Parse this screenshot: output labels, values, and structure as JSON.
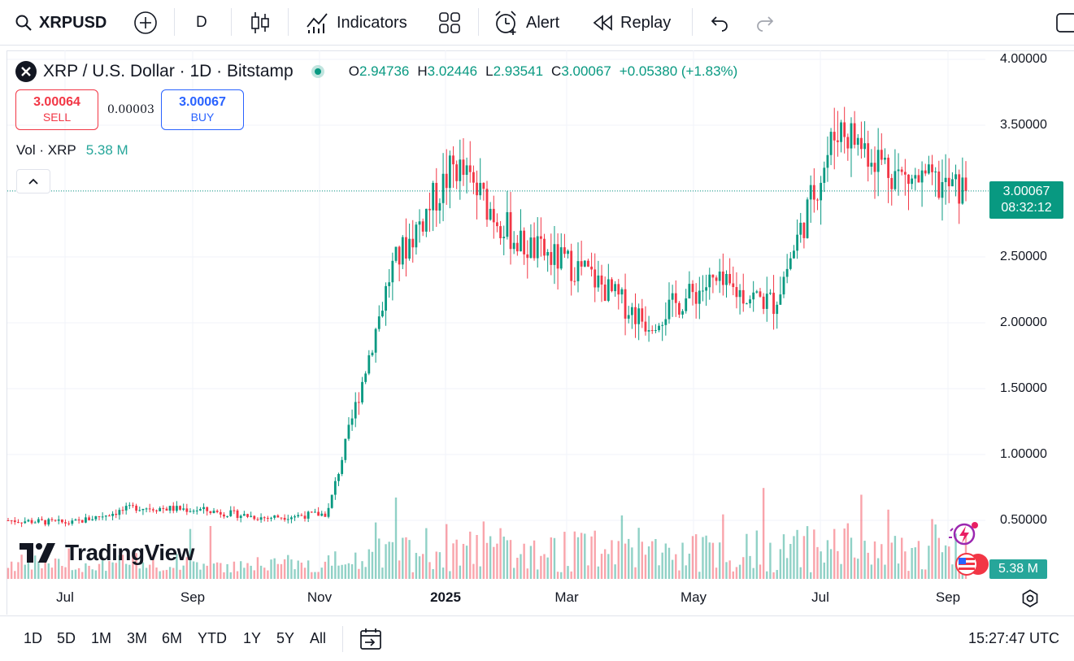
{
  "toolbar": {
    "symbol": "XRPUSD",
    "interval": "D",
    "indicators_label": "Indicators",
    "alert_label": "Alert",
    "replay_label": "Replay"
  },
  "legend": {
    "title": "XRP / U.S. Dollar · 1D · Bitstamp",
    "open_label": "O",
    "open": "2.94736",
    "high_label": "H",
    "high": "3.02446",
    "low_label": "L",
    "low": "2.93541",
    "close_label": "C",
    "close": "3.00067",
    "change": "+0.05380 (+1.83%)"
  },
  "trade": {
    "sell_price": "3.00064",
    "sell_label": "SELL",
    "spread": "0.00003",
    "buy_price": "3.00067",
    "buy_label": "BUY"
  },
  "volume_legend": {
    "label": "Vol · XRP",
    "value": "5.38 M"
  },
  "price_scale": {
    "labels": [
      "4.00000",
      "3.50000",
      "3.00000",
      "2.50000",
      "2.00000",
      "1.50000",
      "1.00000",
      "0.50000"
    ],
    "last_price": "3.00067",
    "countdown": "08:32:12",
    "volume_tag": "5.38 M"
  },
  "time_axis": {
    "labels": [
      "Jul",
      "Sep",
      "Nov",
      "2025",
      "Mar",
      "May",
      "Jul",
      "Sep"
    ]
  },
  "brand": {
    "name": "TradingView"
  },
  "bottom_bar": {
    "ranges": [
      "1D",
      "5D",
      "1M",
      "3M",
      "6M",
      "YTD",
      "1Y",
      "5Y",
      "All"
    ],
    "clock": "15:27:47 UTC"
  },
  "colors": {
    "up": "#089981",
    "down": "#f23645",
    "accent": "#2962ff"
  },
  "chart_data": {
    "type": "candlestick",
    "title": "XRP / U.S. Dollar · 1D · Bitstamp",
    "ylim": [
      0,
      4.0
    ],
    "y_ticks": [
      0.5,
      1.0,
      1.5,
      2.0,
      2.5,
      3.0,
      3.5,
      4.0
    ],
    "x_ticks": [
      "Jul",
      "Sep",
      "Nov",
      "2025",
      "Mar",
      "May",
      "Jul",
      "Sep"
    ],
    "grid": true,
    "last_close": 3.00067,
    "key_points": [
      {
        "x": "Jun 2024",
        "close": 0.5
      },
      {
        "x": "Jul 2024",
        "close": 0.48
      },
      {
        "x": "Aug 2024",
        "close": 0.6
      },
      {
        "x": "Sep 2024",
        "close": 0.58
      },
      {
        "x": "Oct 2024",
        "close": 0.52
      },
      {
        "x": "Nov 2024",
        "close": 0.55
      },
      {
        "x": "Dec 2024",
        "close": 2.4
      },
      {
        "x": "Jan 2025",
        "close": 3.2
      },
      {
        "x": "Feb 2025",
        "close": 2.6
      },
      {
        "x": "Mar 2025",
        "close": 2.4
      },
      {
        "x": "Apr 2025",
        "close": 2.0
      },
      {
        "x": "May 2025",
        "close": 2.3
      },
      {
        "x": "Jun 2025",
        "close": 2.15
      },
      {
        "x": "Jul 2025",
        "close": 3.5
      },
      {
        "x": "Aug 2025",
        "close": 3.1
      },
      {
        "x": "Sep 2025",
        "close": 3.0
      }
    ]
  }
}
